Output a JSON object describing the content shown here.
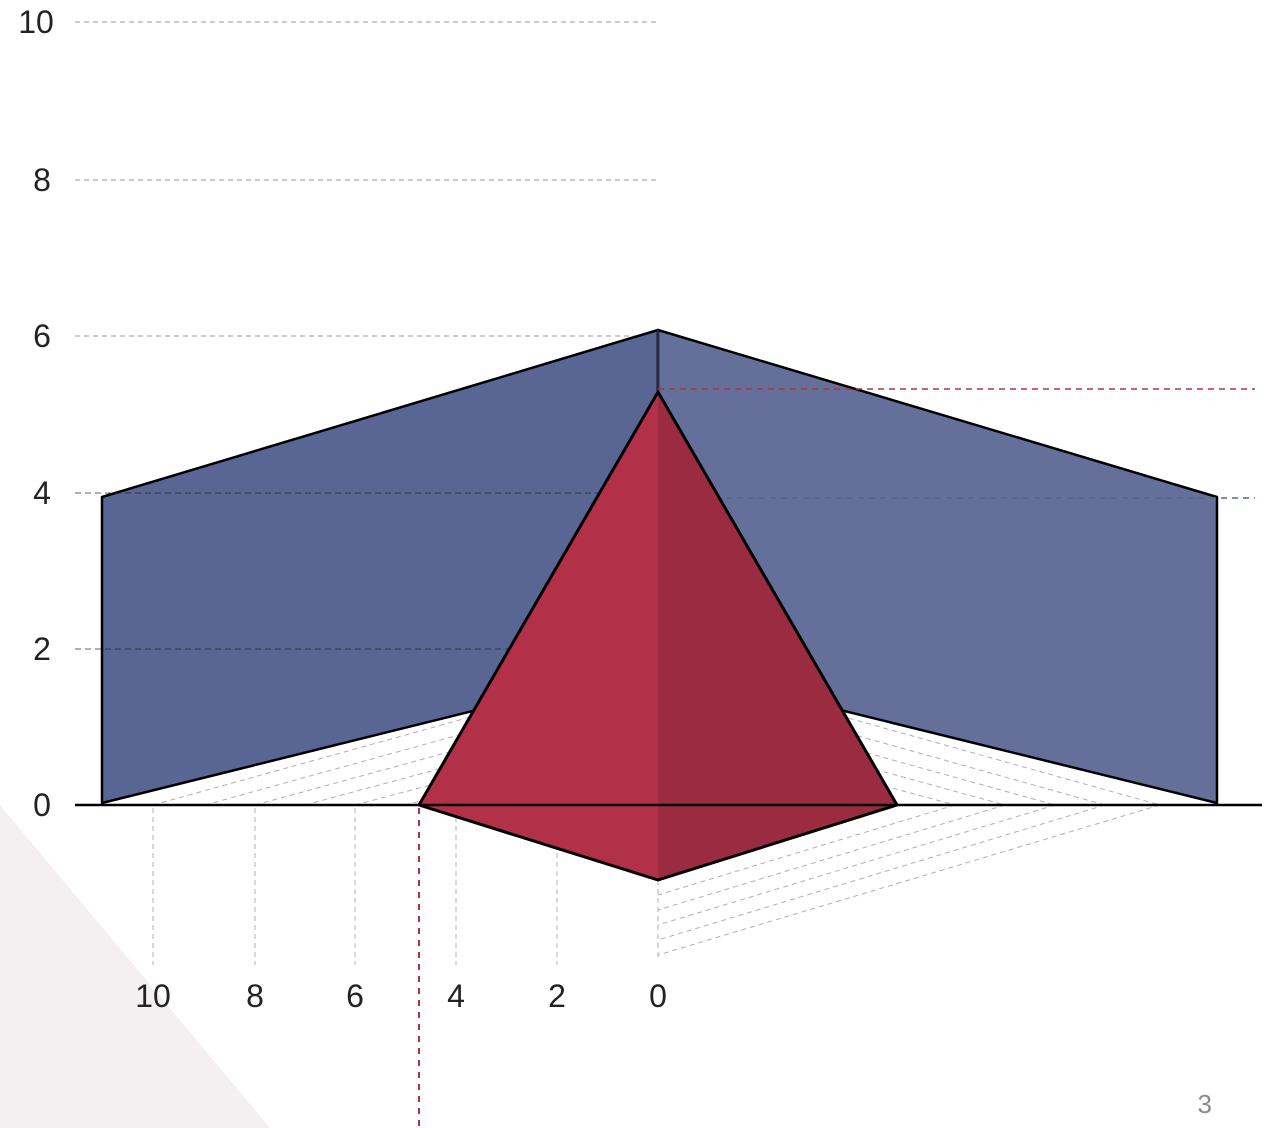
{
  "diagram": {
    "y_axis_ticks": [
      "0",
      "2",
      "4",
      "6",
      "8",
      "10"
    ],
    "x_axis_ticks": [
      "10",
      "8",
      "6",
      "4",
      "2",
      "0"
    ],
    "colors": {
      "wall_left": "#596592",
      "wall_right": "#646f9a",
      "pyramid_left": "#b23048",
      "pyramid_right": "#9b2b40",
      "guide_red": "#b23048",
      "guide_blue": "#596592",
      "background_triangle": "#f4f0f1"
    }
  },
  "page": {
    "number": "3"
  }
}
